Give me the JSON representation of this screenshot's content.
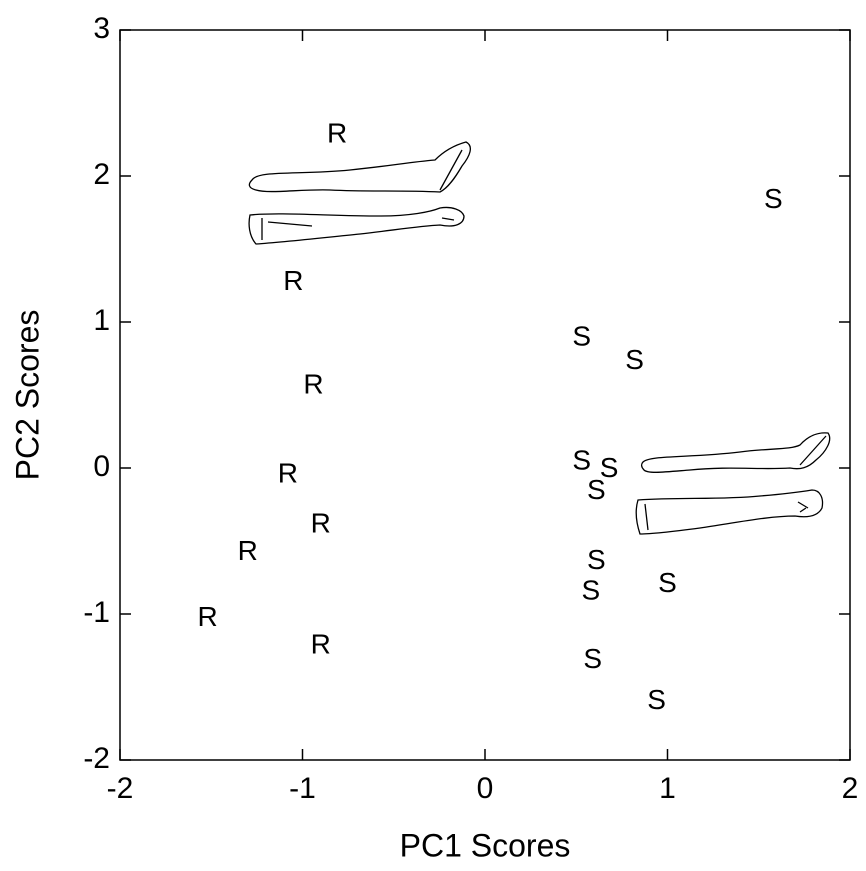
{
  "chart_data": {
    "type": "scatter",
    "x_label": "PC1 Scores",
    "y_label": "PC2 Scores",
    "xlim": [
      -2,
      2
    ],
    "ylim": [
      -2,
      3
    ],
    "xticks": [
      -2,
      -1,
      0,
      1,
      2
    ],
    "yticks": [
      -2,
      -1,
      0,
      1,
      2,
      3
    ],
    "color": "#000000",
    "series": [
      {
        "name": "R",
        "x": [
          -0.81,
          -1.05,
          -0.94,
          -1.08,
          -0.9,
          -1.3,
          -1.52,
          -0.9
        ],
        "values": [
          2.28,
          1.27,
          0.56,
          -0.05,
          -0.39,
          -0.58,
          -1.03,
          -1.22
        ]
      },
      {
        "name": "S",
        "x": [
          1.58,
          0.53,
          0.82,
          0.53,
          0.68,
          0.61,
          0.61,
          0.58,
          1.0,
          0.59,
          0.94
        ],
        "values": [
          1.83,
          0.89,
          0.73,
          0.04,
          -0.01,
          -0.16,
          -0.64,
          -0.85,
          -0.8,
          -1.32,
          -1.6
        ]
      }
    ]
  }
}
